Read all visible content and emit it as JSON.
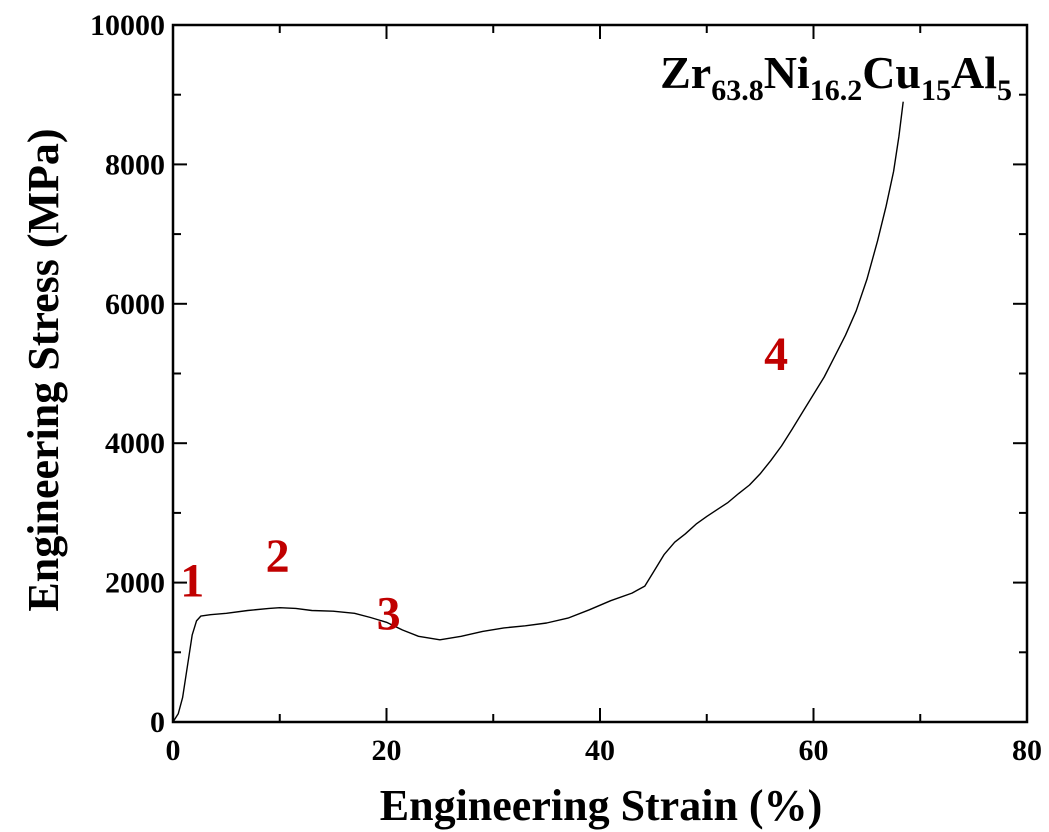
{
  "chart_data": {
    "type": "line",
    "xlabel": "Engineering Strain (%)",
    "ylabel": "Engineering Stress (MPa)",
    "xlim": [
      0,
      80
    ],
    "ylim": [
      0,
      10000
    ],
    "x_ticks": [
      0,
      20,
      40,
      60,
      80
    ],
    "y_ticks": [
      0,
      2000,
      4000,
      6000,
      8000,
      10000
    ],
    "x_tick_labels": [
      "0",
      "20",
      "40",
      "60",
      "80"
    ],
    "y_tick_labels": [
      "0",
      "2000",
      "4000",
      "6000",
      "8000",
      "10000"
    ],
    "grid": false,
    "legend": "none",
    "composition_label": {
      "parts": [
        {
          "text": "Zr",
          "sub": "63.8"
        },
        {
          "text": "Ni",
          "sub": "16.2"
        },
        {
          "text": "Cu",
          "sub": "15"
        },
        {
          "text": "Al",
          "sub": "5"
        }
      ]
    },
    "annotations": [
      {
        "text": "1",
        "x": 1.8,
        "y": 1800
      },
      {
        "text": "2",
        "x": 9.8,
        "y": 2150
      },
      {
        "text": "3",
        "x": 20.2,
        "y": 1330
      },
      {
        "text": "4",
        "x": 56.5,
        "y": 5050
      }
    ],
    "series": [
      {
        "line_color": "#000000",
        "points": [
          [
            0.0,
            0
          ],
          [
            0.5,
            120
          ],
          [
            0.9,
            350
          ],
          [
            1.2,
            650
          ],
          [
            1.5,
            950
          ],
          [
            1.8,
            1250
          ],
          [
            2.2,
            1450
          ],
          [
            2.6,
            1520
          ],
          [
            3.5,
            1540
          ],
          [
            5.0,
            1560
          ],
          [
            7.0,
            1600
          ],
          [
            9.0,
            1630
          ],
          [
            10.0,
            1640
          ],
          [
            11.5,
            1630
          ],
          [
            13.0,
            1600
          ],
          [
            15.0,
            1590
          ],
          [
            17.0,
            1560
          ],
          [
            18.5,
            1500
          ],
          [
            20.0,
            1430
          ],
          [
            21.5,
            1320
          ],
          [
            23.0,
            1230
          ],
          [
            25.0,
            1180
          ],
          [
            27.0,
            1230
          ],
          [
            29.0,
            1300
          ],
          [
            31.0,
            1350
          ],
          [
            33.0,
            1380
          ],
          [
            35.0,
            1420
          ],
          [
            37.0,
            1490
          ],
          [
            39.0,
            1610
          ],
          [
            41.0,
            1740
          ],
          [
            43.0,
            1850
          ],
          [
            44.2,
            1950
          ],
          [
            45.0,
            2150
          ],
          [
            46.0,
            2400
          ],
          [
            47.0,
            2580
          ],
          [
            48.0,
            2700
          ],
          [
            49.0,
            2840
          ],
          [
            50.0,
            2950
          ],
          [
            51.0,
            3050
          ],
          [
            52.0,
            3150
          ],
          [
            53.0,
            3280
          ],
          [
            54.0,
            3400
          ],
          [
            55.0,
            3560
          ],
          [
            56.0,
            3750
          ],
          [
            57.0,
            3960
          ],
          [
            58.0,
            4200
          ],
          [
            59.0,
            4450
          ],
          [
            60.0,
            4700
          ],
          [
            61.0,
            4950
          ],
          [
            62.0,
            5250
          ],
          [
            63.0,
            5550
          ],
          [
            64.0,
            5900
          ],
          [
            65.0,
            6350
          ],
          [
            66.0,
            6900
          ],
          [
            66.8,
            7400
          ],
          [
            67.5,
            7900
          ],
          [
            68.0,
            8400
          ],
          [
            68.4,
            8900
          ]
        ]
      }
    ]
  }
}
